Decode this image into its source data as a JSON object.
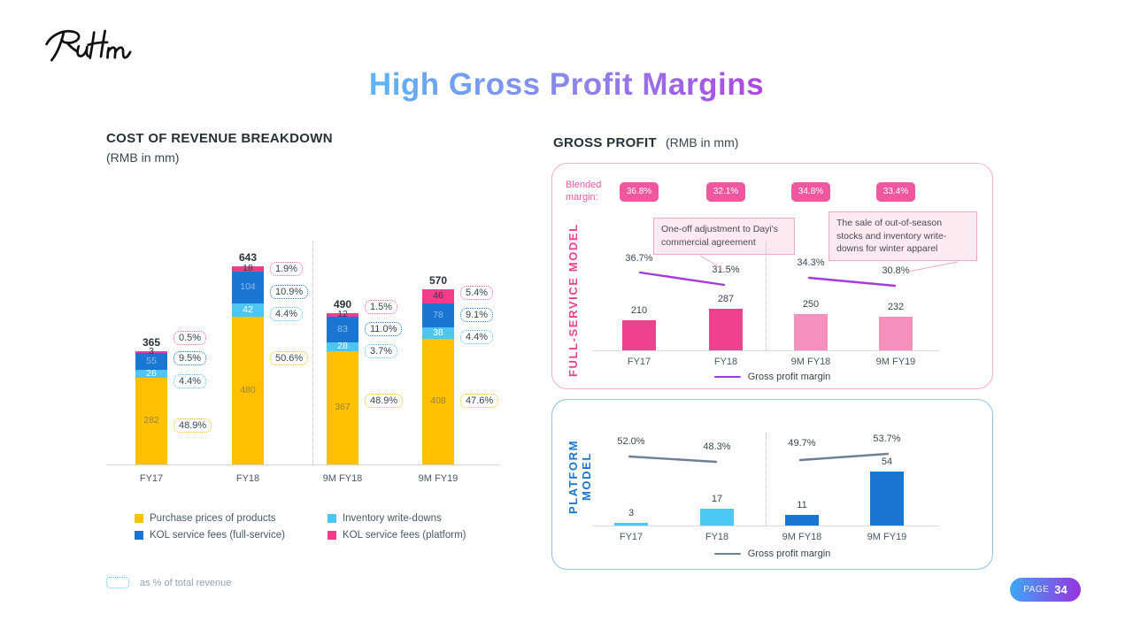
{
  "page": {
    "logo_name": "Ruhnn",
    "title": "High Gross Profit Margins",
    "page_label": "PAGE",
    "page_number": "34"
  },
  "left_section": {
    "title": "COST OF REVENUE BREAKDOWN",
    "subtitle": "(RMB in mm)",
    "legend": [
      {
        "label": "Purchase prices of products",
        "color": "#FFC000"
      },
      {
        "label": "KOL service fees (full-service)",
        "color": "#1976D2"
      },
      {
        "label": "Inventory write-downs",
        "color": "#4EC6F3"
      },
      {
        "label": "KOL service fees (platform)",
        "color": "#F23D8C"
      }
    ],
    "footnote": "as % of total revenue"
  },
  "right_section": {
    "title": "GROSS PROFIT",
    "subtitle": "(RMB in mm)",
    "blended_margin_label": "Blended margin:",
    "full_service_label": "FULL-SERVICE MODEL",
    "platform_label": "PLATFORM MODEL",
    "margin_legend": "Gross profit margin",
    "annotations": [
      "One-off adjustment to Dayi's commercial agreement",
      "The sale of out-of-season stocks and inventory write-downs for winter apparel"
    ]
  },
  "chart_data": [
    {
      "id": "cost_of_revenue_breakdown",
      "type": "bar",
      "stacked": true,
      "title": "COST OF REVENUE BREAKDOWN",
      "unit": "RMB in mm",
      "categories": [
        "FY17",
        "FY18",
        "9M FY18",
        "9M FY19"
      ],
      "totals": [
        365,
        643,
        490,
        570
      ],
      "series": [
        {
          "name": "Purchase prices of products",
          "color": "#FFC000",
          "label_color": "#9C8435",
          "values": [
            282,
            480,
            367,
            408
          ],
          "pct_of_revenue": [
            "48.9%",
            "50.6%",
            "48.9%",
            "47.6%"
          ]
        },
        {
          "name": "Inventory write-downs",
          "color": "#4EC6F3",
          "label_color": "#FFFFFF",
          "values": [
            26,
            42,
            28,
            38
          ],
          "pct_of_revenue": [
            "4.4%",
            "4.4%",
            "3.7%",
            "4.4%"
          ]
        },
        {
          "name": "KOL service fees (full-service)",
          "color": "#1976D2",
          "label_color": "#8FBCEC",
          "values": [
            55,
            104,
            83,
            78
          ],
          "pct_of_revenue": [
            "9.5%",
            "10.9%",
            "11.0%",
            "9.1%"
          ]
        },
        {
          "name": "KOL service fees (platform)",
          "color": "#F23D8C",
          "label_color": "#333B49",
          "values": [
            3,
            18,
            12,
            46
          ],
          "pct_of_revenue": [
            "0.5%",
            "1.9%",
            "1.5%",
            "5.4%"
          ]
        }
      ],
      "footnote": "as % of total revenue"
    },
    {
      "id": "gross_profit_full_service",
      "type": "bar",
      "title": "GROSS PROFIT - FULL-SERVICE MODEL",
      "unit": "RMB in mm",
      "categories": [
        "FY17",
        "FY18",
        "9M FY18",
        "9M FY19"
      ],
      "values": [
        210,
        287,
        250,
        232
      ],
      "bar_colors": [
        "#F0418F",
        "#F0418F",
        "#F58FBE",
        "#F58FBE"
      ],
      "blended_margin_pct": [
        36.8,
        32.1,
        34.8,
        33.4
      ],
      "blended_badge_color": "#F0579E",
      "margin_line": {
        "label": "Gross profit margin",
        "color": "#A63BD9",
        "values_pct": [
          36.7,
          31.5,
          34.3,
          30.8
        ]
      }
    },
    {
      "id": "gross_profit_platform",
      "type": "bar",
      "title": "GROSS PROFIT - PLATFORM MODEL",
      "unit": "RMB in mm",
      "categories": [
        "FY17",
        "FY18",
        "9M FY18",
        "9M FY19"
      ],
      "values": [
        3,
        17,
        11,
        54
      ],
      "bar_colors": [
        "#4DC7F3",
        "#4DC7F3",
        "#1976D2",
        "#1976D2"
      ],
      "margin_line": {
        "label": "Gross profit margin",
        "color": "#6E8096",
        "values_pct": [
          52.0,
          48.3,
          49.7,
          53.7
        ]
      }
    }
  ]
}
